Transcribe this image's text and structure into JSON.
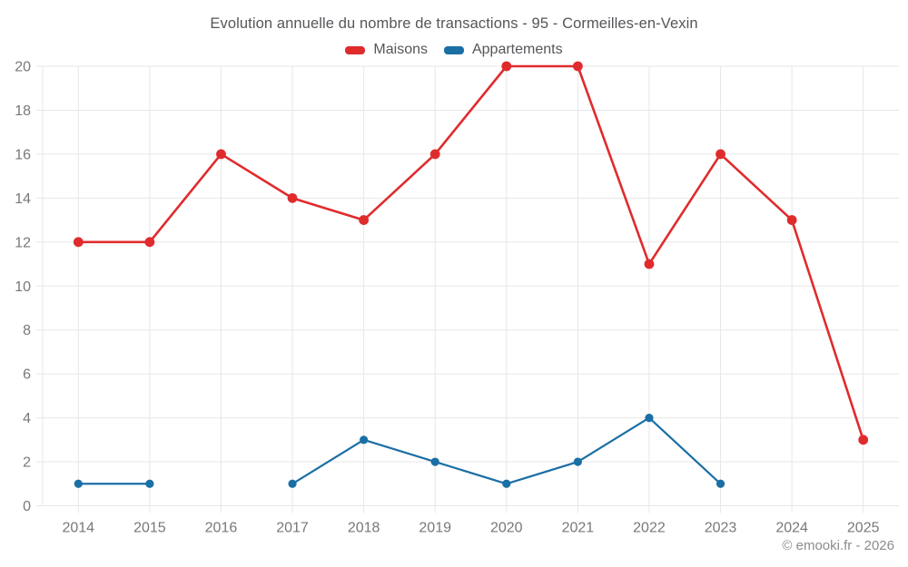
{
  "chart_data": {
    "type": "line",
    "title": "Evolution annuelle du nombre de transactions - 95 - Cormeilles-en-Vexin",
    "categories": [
      "2014",
      "2015",
      "2016",
      "2017",
      "2018",
      "2019",
      "2020",
      "2021",
      "2022",
      "2023",
      "2024",
      "2025"
    ],
    "series": [
      {
        "name": "Maisons",
        "color": "#e02b2d",
        "line_width": 2.6,
        "point_radius": 5.4,
        "values": [
          12,
          12,
          16,
          14,
          13,
          16,
          20,
          20,
          11,
          16,
          13,
          3
        ]
      },
      {
        "name": "Appartements",
        "color": "#1a6fa5",
        "line_width": 2.2,
        "point_radius": 4.6,
        "values": [
          1,
          1,
          null,
          1,
          3,
          2,
          1,
          2,
          4,
          1,
          null,
          null
        ]
      }
    ],
    "ylim": [
      0,
      20
    ],
    "ytick_step": 2,
    "yticks": [
      0,
      2,
      4,
      6,
      8,
      10,
      12,
      14,
      16,
      18,
      20
    ],
    "grid": true,
    "legend_position": "top",
    "grid_color": "#e7e7e7",
    "axis_text_color": "#77787b",
    "title_color": "#55565a"
  },
  "footer": {
    "credit": "© emooki.fr - 2026"
  }
}
